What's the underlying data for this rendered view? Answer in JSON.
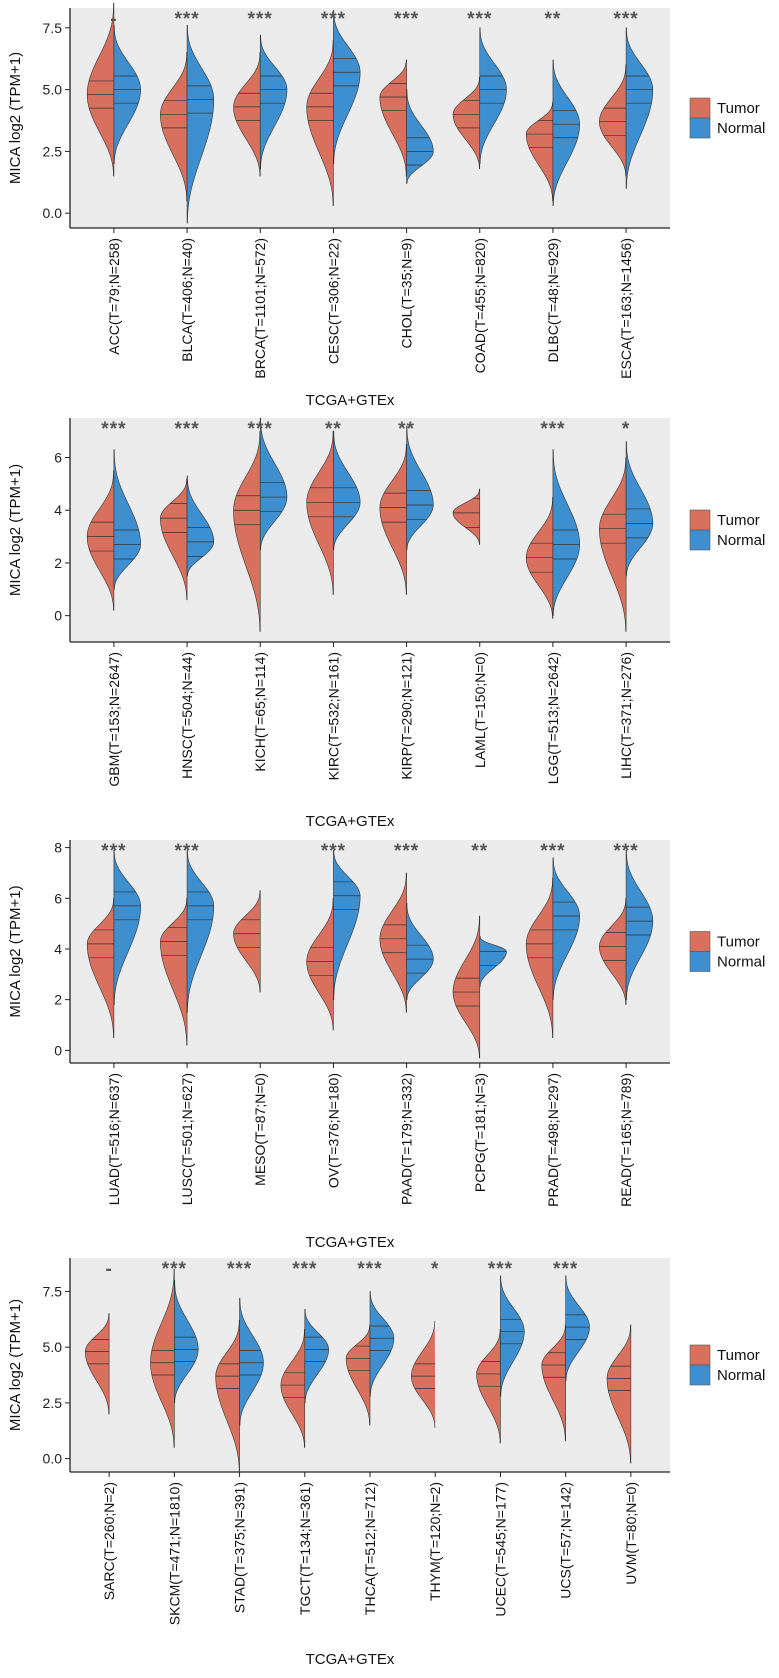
{
  "colors": {
    "tumor": "#D9705E",
    "normal": "#3D8FD0",
    "panel_bg": "#EBEBEB",
    "axis": "#222222"
  },
  "chart_data": [
    {
      "type": "violin",
      "xlabel": "TCGA+GTEx",
      "ylabel": "MICA log2 (TPM+1)",
      "ylim": [
        -0.6,
        8.3
      ],
      "yticks": [
        "0.0",
        "2.5",
        "5.0",
        "7.5"
      ],
      "ytick_values": [
        0,
        2.5,
        5,
        7.5
      ],
      "legend": [
        "Tumor",
        "Normal"
      ],
      "legend_position": "right",
      "categories": [
        "ACC(T=79;N=258)",
        "BLCA(T=406;N=40)",
        "BRCA(T=1101;N=572)",
        "CESC(T=306;N=22)",
        "CHOL(T=35;N=9)",
        "COAD(T=455;N=820)",
        "DLBC(T=48;N=929)",
        "ESCA(T=163;N=1456)"
      ],
      "significance": [
        "-",
        "***",
        "***",
        "***",
        "***",
        "***",
        "**",
        "***"
      ],
      "tumor_median": [
        4.8,
        4.0,
        4.3,
        4.3,
        4.7,
        4.0,
        3.2,
        3.7
      ],
      "tumor_min": [
        1.5,
        0.5,
        1.5,
        0.3,
        1.5,
        1.8,
        0.5,
        1.5
      ],
      "tumor_max": [
        8.5,
        6.5,
        6.5,
        7.0,
        6.2,
        5.5,
        4.5,
        6.0
      ],
      "normal_median": [
        5.0,
        4.6,
        5.0,
        5.7,
        2.5,
        5.0,
        3.6,
        5.0
      ],
      "normal_min": [
        2.0,
        -0.4,
        1.8,
        2.0,
        1.2,
        2.0,
        0.3,
        1.0
      ],
      "normal_max": [
        7.6,
        7.6,
        7.2,
        8.2,
        5.0,
        7.5,
        6.2,
        7.5
      ]
    },
    {
      "type": "violin",
      "xlabel": "TCGA+GTEx",
      "ylabel": "MICA log2 (TPM+1)",
      "ylim": [
        -1.0,
        7.5
      ],
      "yticks": [
        "0",
        "2",
        "4",
        "6"
      ],
      "ytick_values": [
        0,
        2,
        4,
        6
      ],
      "legend": [
        "Tumor",
        "Normal"
      ],
      "legend_position": "right",
      "categories": [
        "GBM(T=153;N=2647)",
        "HNSC(T=504;N=44)",
        "KICH(T=65;N=114)",
        "KIRC(T=532;N=161)",
        "KIRP(T=290;N=121)",
        "LAML(T=150;N=0)",
        "LGG(T=513;N=2642)",
        "LIHC(T=371;N=276)"
      ],
      "significance": [
        "***",
        "***",
        "***",
        "**",
        "**",
        "",
        "***",
        "*"
      ],
      "tumor_median": [
        3.0,
        3.7,
        4.0,
        4.3,
        4.1,
        3.9,
        2.2,
        3.3
      ],
      "tumor_min": [
        0.2,
        0.6,
        -0.6,
        0.8,
        0.8,
        2.7,
        -0.1,
        -0.6
      ],
      "tumor_max": [
        5.5,
        5.2,
        7.0,
        7.0,
        6.5,
        4.8,
        4.5,
        6.0
      ],
      "normal_median": [
        2.7,
        2.8,
        4.5,
        4.3,
        4.2,
        null,
        2.7,
        3.5
      ],
      "normal_min": [
        1.0,
        1.5,
        2.5,
        2.5,
        2.5,
        null,
        0.0,
        1.5
      ],
      "normal_max": [
        6.3,
        5.3,
        7.5,
        7.0,
        7.2,
        null,
        6.3,
        6.6
      ]
    },
    {
      "type": "violin",
      "xlabel": "TCGA+GTEx",
      "ylabel": "MICA log2 (TPM+1)",
      "ylim": [
        -0.5,
        8.3
      ],
      "yticks": [
        "0",
        "2",
        "4",
        "6",
        "8"
      ],
      "ytick_values": [
        0,
        2,
        4,
        6,
        8
      ],
      "legend": [
        "Tumor",
        "Normal"
      ],
      "legend_position": "right",
      "categories": [
        "LUAD(T=516;N=637)",
        "LUSC(T=501;N=627)",
        "MESO(T=87;N=0)",
        "OV(T=376;N=180)",
        "PAAD(T=179;N=332)",
        "PCPG(T=181;N=3)",
        "PRAD(T=498;N=297)",
        "READ(T=165;N=789)"
      ],
      "significance": [
        "***",
        "***",
        "",
        "***",
        "***",
        "**",
        "***",
        "***"
      ],
      "tumor_median": [
        4.2,
        4.3,
        4.6,
        3.5,
        4.4,
        2.3,
        4.2,
        4.1
      ],
      "tumor_min": [
        0.5,
        0.2,
        2.3,
        0.8,
        1.5,
        -0.3,
        0.5,
        1.8
      ],
      "tumor_max": [
        6.0,
        6.0,
        6.3,
        6.0,
        7.0,
        5.3,
        6.8,
        6.0
      ],
      "normal_median": [
        5.7,
        5.7,
        null,
        6.1,
        3.6,
        3.9,
        5.3,
        5.1
      ],
      "normal_min": [
        1.8,
        1.5,
        null,
        2.0,
        2.0,
        2.5,
        2.0,
        2.0
      ],
      "normal_max": [
        7.9,
        7.9,
        null,
        7.9,
        5.8,
        4.5,
        7.6,
        7.9
      ]
    },
    {
      "type": "violin",
      "xlabel": "TCGA+GTEx",
      "ylabel": "MICA log2 (TPM+1)",
      "ylim": [
        -0.6,
        9.0
      ],
      "yticks": [
        "0.0",
        "2.5",
        "5.0",
        "7.5"
      ],
      "ytick_values": [
        0,
        2.5,
        5,
        7.5
      ],
      "legend": [
        "Tumor",
        "Normal"
      ],
      "legend_position": "right",
      "categories": [
        "SARC(T=260;N=2)",
        "SKCM(T=471;N=1810)",
        "STAD(T=375;N=391)",
        "TGCT(T=134;N=361)",
        "THCA(T=512;N=712)",
        "THYM(T=120;N=2)",
        "UCEC(T=545;N=177)",
        "UCS(T=57;N=142)",
        "UVM(T=80;N=0)"
      ],
      "significance": [
        "-",
        "***",
        "***",
        "***",
        "***",
        "*",
        "***",
        "***",
        ""
      ],
      "tumor_median": [
        4.8,
        4.3,
        3.7,
        3.3,
        4.5,
        3.7,
        3.8,
        4.2,
        3.6
      ],
      "tumor_min": [
        2.0,
        0.5,
        -0.6,
        0.5,
        1.5,
        1.4,
        0.7,
        0.8,
        -0.2
      ],
      "tumor_max": [
        6.5,
        8.5,
        6.2,
        5.8,
        6.0,
        6.3,
        5.8,
        6.0,
        6.0
      ],
      "normal_median": [
        null,
        4.9,
        4.3,
        4.9,
        5.4,
        null,
        5.7,
        5.9,
        null
      ],
      "normal_min": [
        null,
        2.5,
        1.5,
        2.5,
        2.8,
        null,
        2.8,
        3.5,
        null
      ],
      "normal_max": [
        null,
        8.0,
        7.2,
        6.7,
        7.5,
        null,
        8.2,
        8.2,
        null
      ]
    }
  ]
}
